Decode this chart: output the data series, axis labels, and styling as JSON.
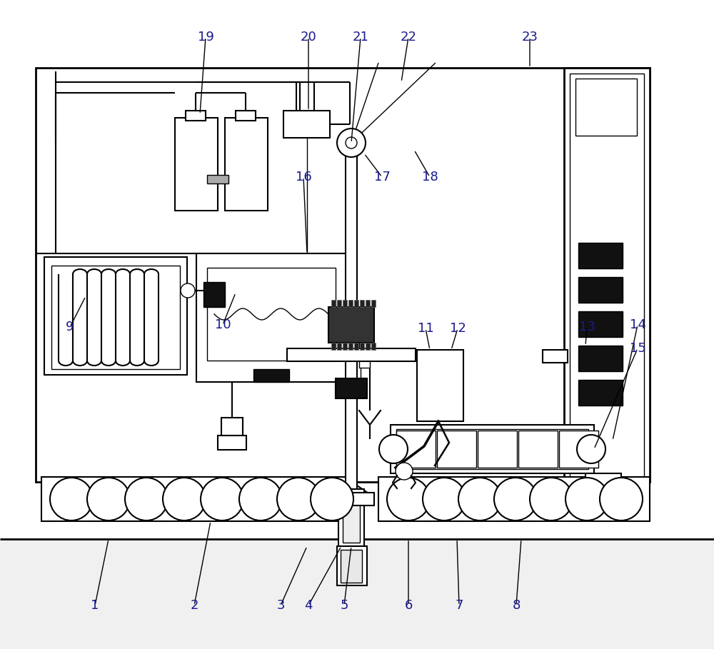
{
  "bg": "#ffffff",
  "lc": "#000000",
  "dark": "#111111",
  "label_color": "#1a1a8c",
  "fs": 13,
  "lw_main": 2.0,
  "lw_med": 1.5,
  "lw_thin": 1.0
}
